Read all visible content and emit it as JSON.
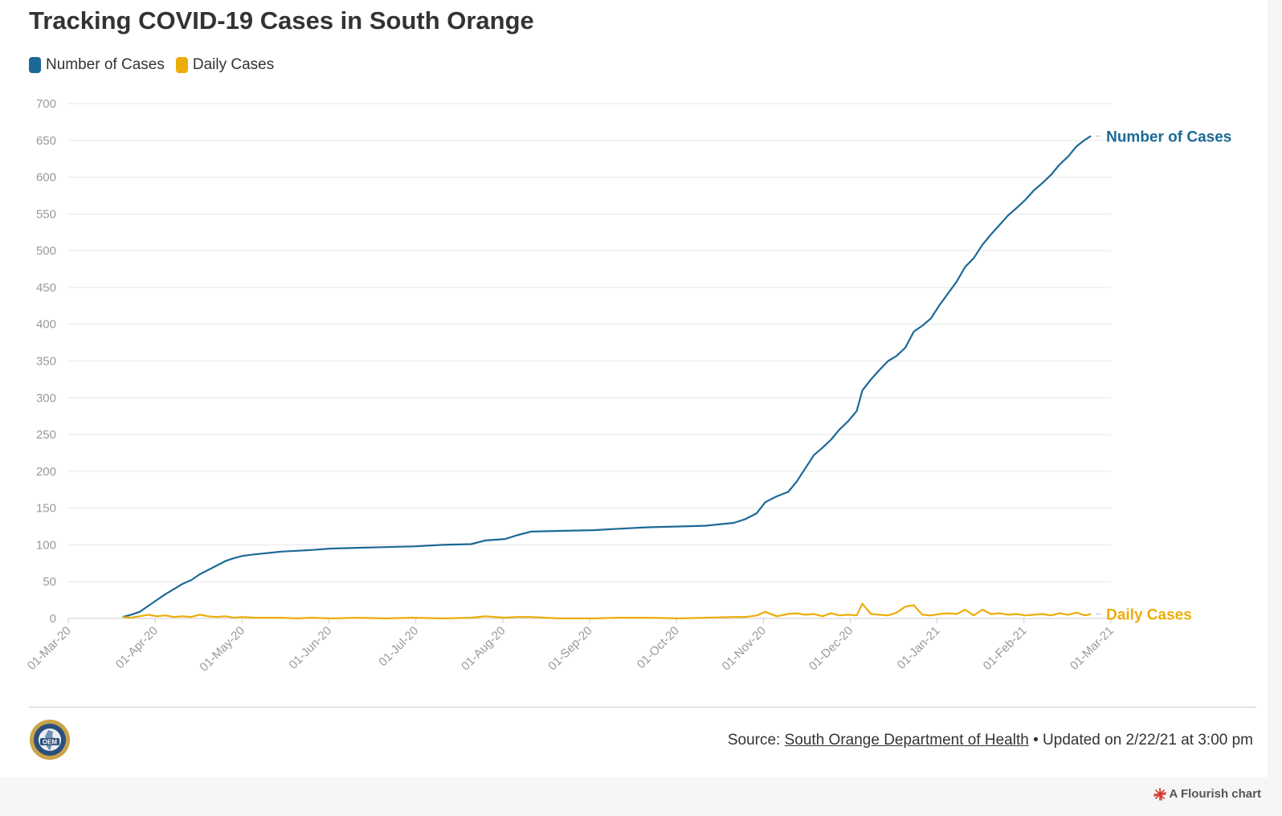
{
  "title": "Tracking COVID-19 Cases in South Orange",
  "legend": [
    {
      "label": "Number of Cases",
      "color": "#1d6996"
    },
    {
      "label": "Daily Cases",
      "color": "#edad08"
    }
  ],
  "footer": {
    "source_prefix": "Source:",
    "source_link": "South Orange Department of Health",
    "updated": "• Updated on 2/22/21 at 3:00 pm",
    "credit": "A Flourish chart",
    "logo_text": "OEM"
  },
  "chart_data": {
    "type": "line",
    "x_type": "date",
    "x_range": [
      "2020-03-01",
      "2021-03-01"
    ],
    "x_tick_labels": [
      "01-Mar-20",
      "01-Apr-20",
      "01-May-20",
      "01-Jun-20",
      "01-Jul-20",
      "01-Aug-20",
      "01-Sep-20",
      "01-Oct-20",
      "01-Nov-20",
      "01-Dec-20",
      "01-Jan-21",
      "01-Feb-21",
      "01-Mar-21"
    ],
    "ylim": [
      0,
      700
    ],
    "y_ticks": [
      0,
      50,
      100,
      150,
      200,
      250,
      300,
      350,
      400,
      450,
      500,
      550,
      600,
      650,
      700
    ],
    "grid": true,
    "legend_position": "top-left",
    "series": [
      {
        "name": "Number of Cases",
        "color": "#1d6996",
        "points": [
          [
            "2020-03-20",
            2
          ],
          [
            "2020-03-23",
            5
          ],
          [
            "2020-03-26",
            9
          ],
          [
            "2020-03-29",
            17
          ],
          [
            "2020-04-01",
            25
          ],
          [
            "2020-04-04",
            33
          ],
          [
            "2020-04-07",
            40
          ],
          [
            "2020-04-10",
            47
          ],
          [
            "2020-04-13",
            52
          ],
          [
            "2020-04-16",
            60
          ],
          [
            "2020-04-19",
            66
          ],
          [
            "2020-04-22",
            72
          ],
          [
            "2020-04-25",
            78
          ],
          [
            "2020-04-28",
            82
          ],
          [
            "2020-05-01",
            85
          ],
          [
            "2020-05-05",
            87
          ],
          [
            "2020-05-10",
            89
          ],
          [
            "2020-05-15",
            91
          ],
          [
            "2020-05-20",
            92
          ],
          [
            "2020-05-25",
            93
          ],
          [
            "2020-06-01",
            95
          ],
          [
            "2020-06-10",
            96
          ],
          [
            "2020-06-20",
            97
          ],
          [
            "2020-06-30",
            98
          ],
          [
            "2020-07-10",
            100
          ],
          [
            "2020-07-20",
            101
          ],
          [
            "2020-07-25",
            106
          ],
          [
            "2020-08-01",
            108
          ],
          [
            "2020-08-05",
            113
          ],
          [
            "2020-08-10",
            118
          ],
          [
            "2020-08-20",
            119
          ],
          [
            "2020-09-01",
            120
          ],
          [
            "2020-09-10",
            122
          ],
          [
            "2020-09-20",
            124
          ],
          [
            "2020-10-01",
            125
          ],
          [
            "2020-10-10",
            126
          ],
          [
            "2020-10-20",
            130
          ],
          [
            "2020-10-24",
            135
          ],
          [
            "2020-10-28",
            143
          ],
          [
            "2020-10-31",
            158
          ],
          [
            "2020-11-04",
            166
          ],
          [
            "2020-11-08",
            172
          ],
          [
            "2020-11-11",
            186
          ],
          [
            "2020-11-14",
            204
          ],
          [
            "2020-11-17",
            222
          ],
          [
            "2020-11-20",
            232
          ],
          [
            "2020-11-23",
            243
          ],
          [
            "2020-11-26",
            257
          ],
          [
            "2020-11-29",
            268
          ],
          [
            "2020-12-02",
            282
          ],
          [
            "2020-12-04",
            310
          ],
          [
            "2020-12-07",
            325
          ],
          [
            "2020-12-10",
            338
          ],
          [
            "2020-12-13",
            350
          ],
          [
            "2020-12-16",
            357
          ],
          [
            "2020-12-19",
            368
          ],
          [
            "2020-12-22",
            390
          ],
          [
            "2020-12-25",
            398
          ],
          [
            "2020-12-28",
            408
          ],
          [
            "2020-12-31",
            426
          ],
          [
            "2021-01-03",
            442
          ],
          [
            "2021-01-06",
            458
          ],
          [
            "2021-01-09",
            478
          ],
          [
            "2021-01-12",
            490
          ],
          [
            "2021-01-15",
            508
          ],
          [
            "2021-01-18",
            522
          ],
          [
            "2021-01-21",
            535
          ],
          [
            "2021-01-24",
            548
          ],
          [
            "2021-01-27",
            558
          ],
          [
            "2021-01-30",
            569
          ],
          [
            "2021-02-02",
            582
          ],
          [
            "2021-02-05",
            592
          ],
          [
            "2021-02-08",
            603
          ],
          [
            "2021-02-11",
            617
          ],
          [
            "2021-02-14",
            628
          ],
          [
            "2021-02-17",
            642
          ],
          [
            "2021-02-20",
            651
          ],
          [
            "2021-02-22",
            656
          ]
        ]
      },
      {
        "name": "Daily Cases",
        "color": "#edad08",
        "points": [
          [
            "2020-03-20",
            2
          ],
          [
            "2020-03-23",
            1
          ],
          [
            "2020-03-26",
            3
          ],
          [
            "2020-03-29",
            5
          ],
          [
            "2020-04-01",
            3
          ],
          [
            "2020-04-04",
            4
          ],
          [
            "2020-04-07",
            2
          ],
          [
            "2020-04-10",
            3
          ],
          [
            "2020-04-13",
            2
          ],
          [
            "2020-04-16",
            5
          ],
          [
            "2020-04-19",
            3
          ],
          [
            "2020-04-22",
            2
          ],
          [
            "2020-04-25",
            3
          ],
          [
            "2020-04-28",
            1
          ],
          [
            "2020-05-01",
            2
          ],
          [
            "2020-05-05",
            1
          ],
          [
            "2020-05-10",
            1
          ],
          [
            "2020-05-15",
            1
          ],
          [
            "2020-05-20",
            0
          ],
          [
            "2020-05-25",
            1
          ],
          [
            "2020-06-01",
            0
          ],
          [
            "2020-06-10",
            1
          ],
          [
            "2020-06-20",
            0
          ],
          [
            "2020-06-30",
            1
          ],
          [
            "2020-07-10",
            0
          ],
          [
            "2020-07-20",
            1
          ],
          [
            "2020-07-25",
            3
          ],
          [
            "2020-08-01",
            1
          ],
          [
            "2020-08-05",
            2
          ],
          [
            "2020-08-10",
            2
          ],
          [
            "2020-08-20",
            0
          ],
          [
            "2020-09-01",
            0
          ],
          [
            "2020-09-10",
            1
          ],
          [
            "2020-09-20",
            1
          ],
          [
            "2020-10-01",
            0
          ],
          [
            "2020-10-10",
            1
          ],
          [
            "2020-10-20",
            2
          ],
          [
            "2020-10-24",
            2
          ],
          [
            "2020-10-28",
            4
          ],
          [
            "2020-10-31",
            9
          ],
          [
            "2020-11-04",
            3
          ],
          [
            "2020-11-08",
            6
          ],
          [
            "2020-11-11",
            7
          ],
          [
            "2020-11-14",
            5
          ],
          [
            "2020-11-17",
            6
          ],
          [
            "2020-11-20",
            3
          ],
          [
            "2020-11-23",
            7
          ],
          [
            "2020-11-26",
            4
          ],
          [
            "2020-11-29",
            5
          ],
          [
            "2020-12-02",
            4
          ],
          [
            "2020-12-04",
            20
          ],
          [
            "2020-12-07",
            6
          ],
          [
            "2020-12-10",
            5
          ],
          [
            "2020-12-13",
            4
          ],
          [
            "2020-12-16",
            8
          ],
          [
            "2020-12-19",
            16
          ],
          [
            "2020-12-22",
            18
          ],
          [
            "2020-12-25",
            5
          ],
          [
            "2020-12-28",
            4
          ],
          [
            "2020-12-31",
            6
          ],
          [
            "2021-01-03",
            7
          ],
          [
            "2021-01-06",
            6
          ],
          [
            "2021-01-09",
            12
          ],
          [
            "2021-01-12",
            4
          ],
          [
            "2021-01-15",
            12
          ],
          [
            "2021-01-18",
            6
          ],
          [
            "2021-01-21",
            7
          ],
          [
            "2021-01-24",
            5
          ],
          [
            "2021-01-27",
            6
          ],
          [
            "2021-01-30",
            4
          ],
          [
            "2021-02-02",
            5
          ],
          [
            "2021-02-05",
            6
          ],
          [
            "2021-02-08",
            4
          ],
          [
            "2021-02-11",
            7
          ],
          [
            "2021-02-14",
            5
          ],
          [
            "2021-02-17",
            8
          ],
          [
            "2021-02-20",
            4
          ],
          [
            "2021-02-22",
            6
          ]
        ]
      }
    ]
  }
}
